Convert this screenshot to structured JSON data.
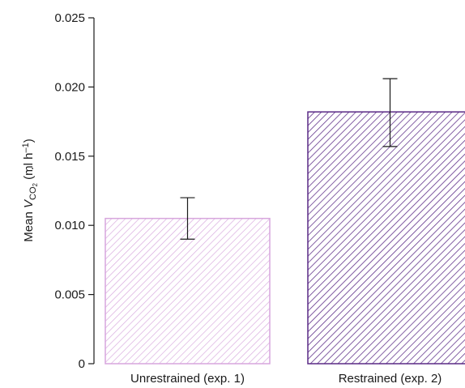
{
  "chart_data": {
    "type": "bar",
    "categories": [
      "Unrestrained (exp. 1)",
      "Restrained (exp. 2)"
    ],
    "values": [
      0.0105,
      0.0182
    ],
    "error_low": [
      0.009,
      0.0157
    ],
    "error_high": [
      0.012,
      0.0206
    ],
    "ylim": [
      0,
      0.025
    ],
    "yticks": [
      "0",
      "0.005",
      "0.010",
      "0.015",
      "0.020",
      "0.025"
    ],
    "ylabel": {
      "prefix": "Mean ",
      "symbol": "V",
      "subscript": "CO",
      "subscript2": "2",
      "unit": " (ml h",
      "unit_sup": "–1",
      "unit_close": ")"
    },
    "bar_colors": [
      "#d7a6dd",
      "#5a2a86"
    ],
    "grid": false,
    "fill": "diagonal hatch"
  }
}
